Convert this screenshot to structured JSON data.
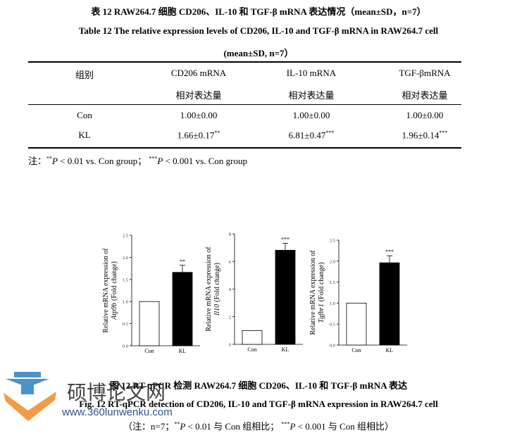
{
  "header": {
    "title_cn": "表  12 RAW264.7  细胞  CD206、IL-10  和  TGF-β mRNA  表达情况（mean±SD，n=7）",
    "title_en": "Table 12 The relative expression levels of CD206, IL-10 and TGF-β mRNA in RAW264.7 cell",
    "title_en_2": "(mean±SD, n=7）"
  },
  "table": {
    "header_row_1": [
      "组别",
      "CD206 mRNA",
      "IL-10 mRNA",
      "TGF-βmRNA"
    ],
    "header_row_2": [
      "相对表达量",
      "相对表达量",
      "相对表达量"
    ],
    "rows": [
      {
        "label": "Con",
        "cells": [
          {
            "text": "1.00±0.00"
          },
          {
            "text": "1.00±0.00"
          },
          {
            "text": "1.00±0.00"
          }
        ]
      },
      {
        "label": "KL",
        "cells": [
          {
            "text": "1.66±0.17",
            "sup": "**"
          },
          {
            "text": "6.81±0.47",
            "sup": "***"
          },
          {
            "text": "1.96±0.14",
            "sup": "***"
          }
        ]
      }
    ],
    "note": [
      "注：",
      "**",
      "P",
      "< 0.01 vs. Con group；",
      "***",
      "P",
      "< 0.001 vs. Con group"
    ]
  },
  "figure": {
    "charts": [
      {
        "type": "bar",
        "ylabel": "Relative mRNA expression of",
        "gene": "Atp9b",
        "unit": "(Fold change)",
        "categories": [
          "Con",
          "KL"
        ],
        "values": [
          1.0,
          1.66
        ],
        "colors": [
          "#ffffff",
          "#000000"
        ],
        "ylim": [
          0,
          2.5
        ],
        "yticks": [
          {
            "value": 0,
            "label": "0.0"
          },
          {
            "value": 0.5,
            "label": "0.5"
          },
          {
            "value": 1,
            "label": "1.0"
          },
          {
            "value": 1.5,
            "label": "1.5"
          },
          {
            "value": 2,
            "label": "2.0"
          },
          {
            "value": 2.5,
            "label": "2.5"
          }
        ],
        "annotation": "**"
      },
      {
        "type": "bar",
        "ylabel": "Relative mRNA expression of",
        "gene": "Il10",
        "unit": "(Fold change)",
        "categories": [
          "Con",
          "KL"
        ],
        "values": [
          1.0,
          6.81
        ],
        "colors": [
          "#ffffff",
          "#000000"
        ],
        "ylim": [
          0,
          8
        ],
        "yticks": [
          0,
          2,
          4,
          6,
          8
        ],
        "annotation": "***"
      },
      {
        "type": "bar",
        "ylabel": "Relative mRNA expression of",
        "gene": "Tgfbr1",
        "unit": "(Fold change)",
        "categories": [
          "Con",
          "KL"
        ],
        "values": [
          1.0,
          1.96
        ],
        "colors": [
          "#ffffff",
          "#000000"
        ],
        "ylim": [
          0,
          2.5
        ],
        "yticks": [
          {
            "value": 0,
            "label": "0.0"
          },
          {
            "value": 0.5,
            "label": "0.5"
          },
          {
            "value": 1,
            "label": "1.0"
          },
          {
            "value": 1.5,
            "label": "1.5"
          },
          {
            "value": 2,
            "label": "2.0"
          },
          {
            "value": 2.5,
            "label": "2.5"
          }
        ],
        "annotation": "***"
      }
    ],
    "caption_cn": "图  12 RT-qPCR 检测  RAW264.7  细胞  CD206、IL-10  和  TGF-β mRNA 表达",
    "caption_en": "Fig. 12 RT-qPCR detection of CD206, IL-10 and TGF-β mRNA expression in RAW264.7 cell",
    "caption_note": [
      "（注：n=7；",
      "**",
      "P",
      "< 0.01  与  Con  组相比；",
      "***",
      "P",
      "< 0.001  与  Con  组相比）"
    ]
  },
  "watermark": {
    "name": "硕博论文网",
    "url": "www.360lunwenku.com"
  }
}
